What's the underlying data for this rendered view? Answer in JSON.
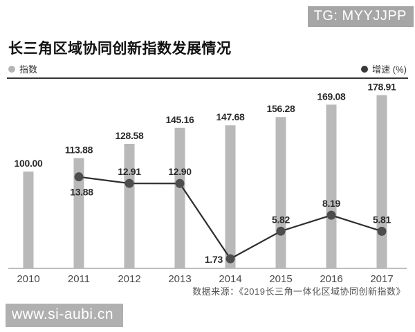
{
  "badge": {
    "text": "TG: MYYJJPP"
  },
  "title": "长三角区域协同创新指数发展情况",
  "legend": {
    "index_label": "指数",
    "growth_label": "增速 (%)"
  },
  "source": "数据来源：《2019长三角一体化区域协同创新指数》",
  "watermark": "www.si-aubi.cn",
  "colors": {
    "bar": "#b9b9b9",
    "line": "#2e2e2e",
    "dot": "#4d4d4d",
    "legend_index_dot": "#b5b5b5",
    "legend_growth_dot": "#3a3a3a",
    "axis": "#a9a9a9",
    "separator": "#333333",
    "badge_bg": "#a6a6a6",
    "watermark_bg": "#b0b0b0",
    "value_label": "#2b2b2b",
    "year_label": "#4a4a4a"
  },
  "chart_data": {
    "type": "combo-bar-line",
    "title": "长三角区域协同创新指数发展情况",
    "categories": [
      "2010",
      "2011",
      "2012",
      "2013",
      "2014",
      "2015",
      "2016",
      "2017"
    ],
    "series": [
      {
        "name": "指数",
        "type": "bar",
        "axis": "left",
        "values": [
          100.0,
          113.88,
          128.58,
          145.16,
          147.68,
          156.28,
          169.08,
          178.91
        ]
      },
      {
        "name": "增速 (%)",
        "type": "line",
        "axis": "right",
        "values": [
          null,
          13.88,
          12.91,
          12.9,
          1.73,
          5.82,
          8.19,
          5.81
        ],
        "label_positions": [
          null,
          "below",
          "above",
          "above",
          "left",
          "above",
          "above",
          "above"
        ]
      }
    ],
    "value_labels": true,
    "label_decimals": 2,
    "ylim_bar": [
      0,
      191
    ],
    "ylim_line": [
      0,
      28
    ],
    "grid": false,
    "legend_position": "top",
    "xlabel": "",
    "ylabel": ""
  }
}
